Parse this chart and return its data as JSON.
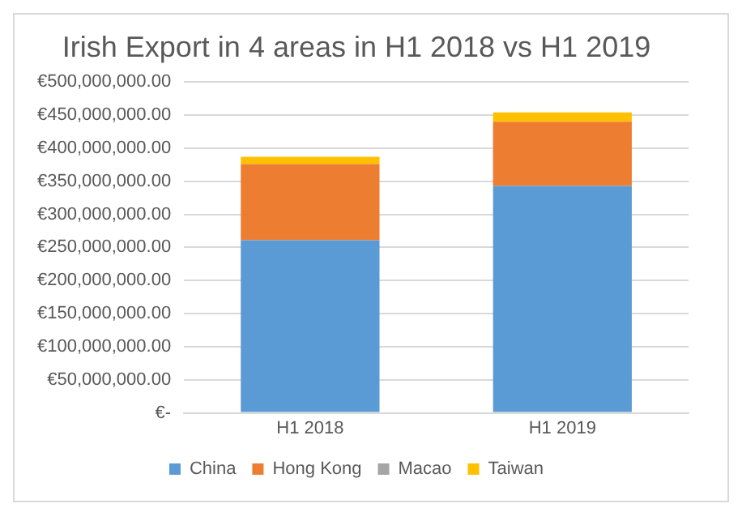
{
  "chart_data": {
    "type": "bar",
    "title": "Irish Export in 4 areas in H1 2018 vs H1 2019",
    "categories": [
      "H1 2018",
      "H1 2019"
    ],
    "stacked": true,
    "series": [
      {
        "name": "China",
        "color": "#5b9bd5",
        "values": [
          261000000,
          343000000
        ]
      },
      {
        "name": "Hong Kong",
        "color": "#ed7d31",
        "values": [
          115000000,
          97000000
        ]
      },
      {
        "name": "Macao",
        "color": "#a5a5a5",
        "values": [
          null,
          null
        ]
      },
      {
        "name": "Taiwan",
        "color": "#ffc000",
        "values": [
          11000000,
          14000000
        ]
      }
    ],
    "ylim": [
      0,
      500000000
    ],
    "yticks": [
      {
        "value": 0,
        "label": "€-"
      },
      {
        "value": 50000000,
        "label": "€50,000,000.00"
      },
      {
        "value": 100000000,
        "label": "€100,000,000.00"
      },
      {
        "value": 150000000,
        "label": "€150,000,000.00"
      },
      {
        "value": 200000000,
        "label": "€200,000,000.00"
      },
      {
        "value": 250000000,
        "label": "€250,000,000.00"
      },
      {
        "value": 300000000,
        "label": "€300,000,000.00"
      },
      {
        "value": 350000000,
        "label": "€350,000,000.00"
      },
      {
        "value": 400000000,
        "label": "€400,000,000.00"
      },
      {
        "value": 450000000,
        "label": "€450,000,000.00"
      },
      {
        "value": 500000000,
        "label": "€500,000,000.00"
      }
    ],
    "grid": "y",
    "legend": "bottom"
  }
}
